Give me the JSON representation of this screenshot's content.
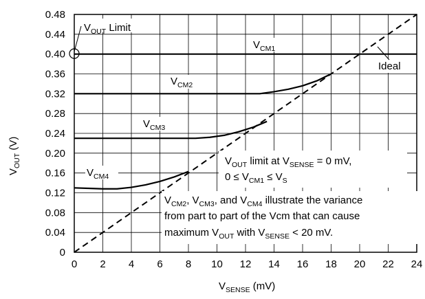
{
  "chart_data": {
    "type": "line",
    "xlabel": {
      "main": "V",
      "sub": "SENSE",
      "unit": " (mV)"
    },
    "ylabel": {
      "main": "V",
      "sub": "OUT",
      "unit": " (V)"
    },
    "xlim": [
      0,
      24
    ],
    "ylim": [
      0,
      0.48
    ],
    "grid": true,
    "x_ticks": [
      "0",
      "2",
      "4",
      "6",
      "8",
      "10",
      "12",
      "14",
      "16",
      "18",
      "20",
      "22",
      "24"
    ],
    "y_ticks": [
      "0",
      "0.04",
      "0.08",
      "0.12",
      "0.16",
      "0.20",
      "0.24",
      "0.28",
      "0.32",
      "0.36",
      "0.40",
      "0.44",
      "0.48"
    ],
    "series": [
      {
        "name": "VCM1",
        "label": {
          "main": "V",
          "sub": "CM1"
        },
        "style": "solid",
        "x": [
          0,
          20,
          24
        ],
        "y": [
          0.4,
          0.4,
          0.4
        ]
      },
      {
        "name": "VCM2",
        "label": {
          "main": "V",
          "sub": "CM2"
        },
        "style": "solid",
        "x": [
          0,
          13,
          14,
          15,
          16,
          17,
          18
        ],
        "y": [
          0.32,
          0.32,
          0.324,
          0.329,
          0.336,
          0.346,
          0.36
        ]
      },
      {
        "name": "VCM3",
        "label": {
          "main": "V",
          "sub": "CM3"
        },
        "style": "solid",
        "x": [
          0,
          8.5,
          9.5,
          10.5,
          11.5,
          12.5,
          13.5
        ],
        "y": [
          0.23,
          0.23,
          0.232,
          0.236,
          0.243,
          0.252,
          0.264
        ]
      },
      {
        "name": "VCM4",
        "label": {
          "main": "V",
          "sub": "CM4"
        },
        "style": "solid",
        "x": [
          0,
          1,
          2,
          3,
          4,
          5,
          6,
          7,
          8
        ],
        "y": [
          0.13,
          0.129,
          0.128,
          0.128,
          0.131,
          0.136,
          0.143,
          0.152,
          0.163
        ]
      },
      {
        "name": "Ideal",
        "label": {
          "main": "Ideal",
          "sub": ""
        },
        "style": "dashed",
        "x": [
          0,
          24
        ],
        "y": [
          0,
          0.48
        ]
      }
    ],
    "annotations": {
      "vout_limit": {
        "main": "V",
        "sub": "OUT",
        "rest": " Limit",
        "x": 0,
        "y": 0.4
      },
      "box1": {
        "line1": {
          "a": "V",
          "a_sub": "OUT",
          "b": " limit at V",
          "b_sub": "SENSE",
          "c": " = 0 mV,"
        },
        "line2": {
          "a": "0 ≤ V",
          "a_sub": "CM1",
          "b": " ≤ V",
          "b_sub": "S"
        }
      },
      "box2": {
        "line1": {
          "a": "V",
          "a_sub": "CM2",
          "b": ", V",
          "b_sub": "CM3",
          "c": ", and V",
          "c_sub": "CM4",
          "d": " illustrate the variance"
        },
        "line2": "from part to part of the Vcm that can cause",
        "line3": {
          "a": "maximum V",
          "a_sub": "OUT",
          "b": " with V",
          "b_sub": "SENSE",
          "c": " < 20 mV."
        }
      }
    }
  }
}
